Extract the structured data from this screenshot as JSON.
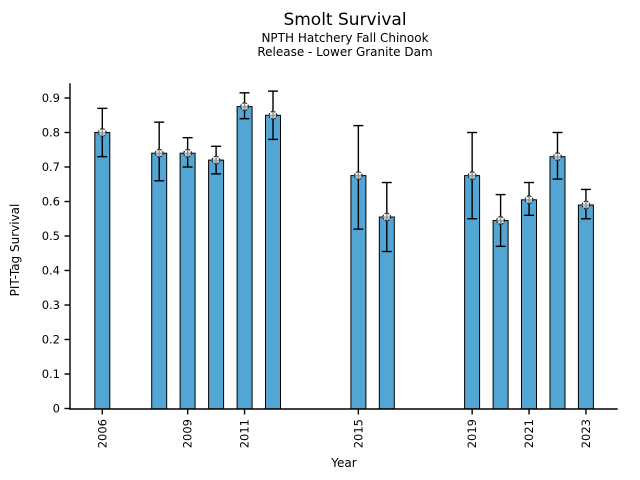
{
  "header": {
    "title": "Smolt Survival",
    "subtitle1": "NPTH Hatchery Fall Chinook",
    "subtitle2": "Release - Lower Granite Dam"
  },
  "chart_data": {
    "type": "bar",
    "title": "Smolt Survival",
    "subtitle": [
      "NPTH Hatchery Fall Chinook",
      "Release - Lower Granite Dam"
    ],
    "xlabel": "Year",
    "ylabel": "PIT-Tag Survival",
    "categories": [
      2006,
      2008,
      2009,
      2010,
      2011,
      2012,
      2015,
      2016,
      2019,
      2020,
      2021,
      2022,
      2023
    ],
    "values": [
      0.8,
      0.74,
      0.74,
      0.72,
      0.875,
      0.85,
      0.675,
      0.555,
      0.675,
      0.545,
      0.605,
      0.73,
      0.59
    ],
    "error_low": [
      0.73,
      0.66,
      0.7,
      0.68,
      0.84,
      0.78,
      0.52,
      0.455,
      0.55,
      0.47,
      0.56,
      0.665,
      0.55
    ],
    "error_high": [
      0.87,
      0.83,
      0.785,
      0.76,
      0.915,
      0.92,
      0.82,
      0.655,
      0.8,
      0.62,
      0.655,
      0.8,
      0.635
    ],
    "xticks": [
      2006,
      2009,
      2011,
      2015,
      2019,
      2021,
      2023
    ],
    "xtick_labels": [
      "2006",
      "2009",
      "2011",
      "2015",
      "2019",
      "2021",
      "2023"
    ],
    "yticks": [
      0,
      0.1,
      0.2,
      0.3,
      0.4,
      0.5,
      0.6,
      0.7,
      0.8,
      0.9
    ],
    "ytick_labels": [
      "0",
      "0.1",
      "0.2",
      "0.3",
      "0.4",
      "0.5",
      "0.6",
      "0.7",
      "0.8",
      "0.9"
    ],
    "ylim": [
      0,
      0.94
    ],
    "xlim": [
      2004.9,
      2024.3
    ],
    "grid": false,
    "legend": null,
    "marker": "open-circle-crosshair",
    "colors": {
      "bar_fill": "#53a6d3",
      "bar_edge": "#000000",
      "error_bar": "#000000",
      "marker_stroke": "#222222",
      "axis": "#000000",
      "background": "#ffffff"
    }
  }
}
